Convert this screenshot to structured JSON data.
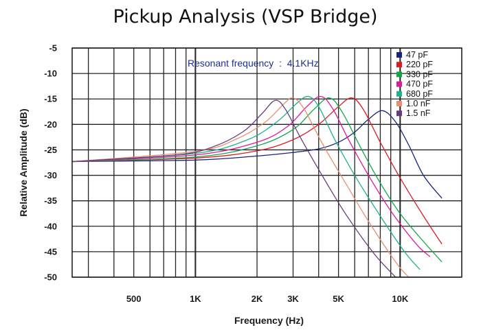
{
  "chart_data": {
    "type": "line",
    "title": "Pickup Analysis (VSP Bridge)",
    "xlabel": "Frequency (Hz)",
    "ylabel": "Relative Amplitude (dB)",
    "xscale": "log",
    "xlim": [
      250,
      20000
    ],
    "ylim": [
      -50,
      -5
    ],
    "x_tick_labels": [
      {
        "x": 500,
        "label": "500"
      },
      {
        "x": 1000,
        "label": "1K"
      },
      {
        "x": 2000,
        "label": "2K"
      },
      {
        "x": 3000,
        "label": "3K"
      },
      {
        "x": 5000,
        "label": "5K"
      },
      {
        "x": 10000,
        "label": "10K"
      }
    ],
    "y_ticks": [
      -5,
      -10,
      -15,
      -20,
      -25,
      -30,
      -35,
      -40,
      -45,
      -50
    ],
    "grid": true,
    "legend_position": "top-right",
    "annotation": {
      "text": "Resonant frequency  :  4.1KHz",
      "color": "#1c2f8f"
    },
    "series": [
      {
        "name": "47 pF",
        "color": "#16237e",
        "points": [
          [
            250,
            -27.3
          ],
          [
            1000,
            -27
          ],
          [
            2000,
            -26.2
          ],
          [
            3000,
            -25.5
          ],
          [
            4000,
            -24.8
          ],
          [
            5000,
            -23.5
          ],
          [
            6000,
            -21.5
          ],
          [
            7000,
            -19
          ],
          [
            8200,
            -17.3
          ],
          [
            9500,
            -19.5
          ],
          [
            11000,
            -24
          ],
          [
            13000,
            -30
          ],
          [
            16000,
            -34.5
          ]
        ]
      },
      {
        "name": "220 pF",
        "color": "#e01a22",
        "points": [
          [
            250,
            -27.3
          ],
          [
            1000,
            -26.6
          ],
          [
            2000,
            -25.2
          ],
          [
            3000,
            -23
          ],
          [
            4000,
            -20
          ],
          [
            5000,
            -16.5
          ],
          [
            5800,
            -14.8
          ],
          [
            6600,
            -17
          ],
          [
            8000,
            -23.5
          ],
          [
            10000,
            -30.5
          ],
          [
            13000,
            -38
          ],
          [
            16000,
            -43.5
          ]
        ]
      },
      {
        "name": "330 pF",
        "color": "#11a64c",
        "points": [
          [
            250,
            -27.3
          ],
          [
            1000,
            -26.4
          ],
          [
            2000,
            -24.2
          ],
          [
            3000,
            -21
          ],
          [
            3800,
            -17
          ],
          [
            4500,
            -14.8
          ],
          [
            5200,
            -17.5
          ],
          [
            6500,
            -25
          ],
          [
            8000,
            -31.5
          ],
          [
            10000,
            -37.5
          ],
          [
            13000,
            -43
          ],
          [
            16000,
            -47
          ]
        ]
      },
      {
        "name": "470 pF",
        "color": "#e0189a",
        "points": [
          [
            250,
            -27.3
          ],
          [
            1000,
            -26
          ],
          [
            2000,
            -23.5
          ],
          [
            2800,
            -20.5
          ],
          [
            3500,
            -16.5
          ],
          [
            4100,
            -14.5
          ],
          [
            4700,
            -17
          ],
          [
            5600,
            -23
          ],
          [
            7000,
            -30
          ],
          [
            9000,
            -37
          ],
          [
            12000,
            -43.5
          ],
          [
            14000,
            -46
          ]
        ]
      },
      {
        "name": "680 pF",
        "color": "#1fb08c",
        "points": [
          [
            250,
            -27.3
          ],
          [
            1000,
            -25.7
          ],
          [
            1800,
            -23
          ],
          [
            2500,
            -19.5
          ],
          [
            3100,
            -16
          ],
          [
            3550,
            -14.5
          ],
          [
            4000,
            -16.5
          ],
          [
            4800,
            -23
          ],
          [
            6000,
            -30
          ],
          [
            8000,
            -38
          ],
          [
            10500,
            -45
          ],
          [
            12500,
            -48.5
          ]
        ]
      },
      {
        "name": "1.0 nF",
        "color": "#e6906e",
        "points": [
          [
            250,
            -27.3
          ],
          [
            1000,
            -25.3
          ],
          [
            1600,
            -22.8
          ],
          [
            2200,
            -19.5
          ],
          [
            2700,
            -16
          ],
          [
            3000,
            -14.8
          ],
          [
            3400,
            -17
          ],
          [
            4200,
            -24
          ],
          [
            5500,
            -32
          ],
          [
            7000,
            -39
          ],
          [
            9500,
            -47
          ],
          [
            11000,
            -50
          ]
        ]
      },
      {
        "name": "1.5 nF",
        "color": "#6b3a7e",
        "points": [
          [
            250,
            -27.3
          ],
          [
            800,
            -26
          ],
          [
            1200,
            -24.5
          ],
          [
            1700,
            -21.5
          ],
          [
            2100,
            -18
          ],
          [
            2450,
            -15.3
          ],
          [
            2750,
            -17
          ],
          [
            3300,
            -23
          ],
          [
            4300,
            -31
          ],
          [
            5500,
            -38
          ],
          [
            7500,
            -45.5
          ],
          [
            9500,
            -50
          ]
        ]
      }
    ]
  }
}
